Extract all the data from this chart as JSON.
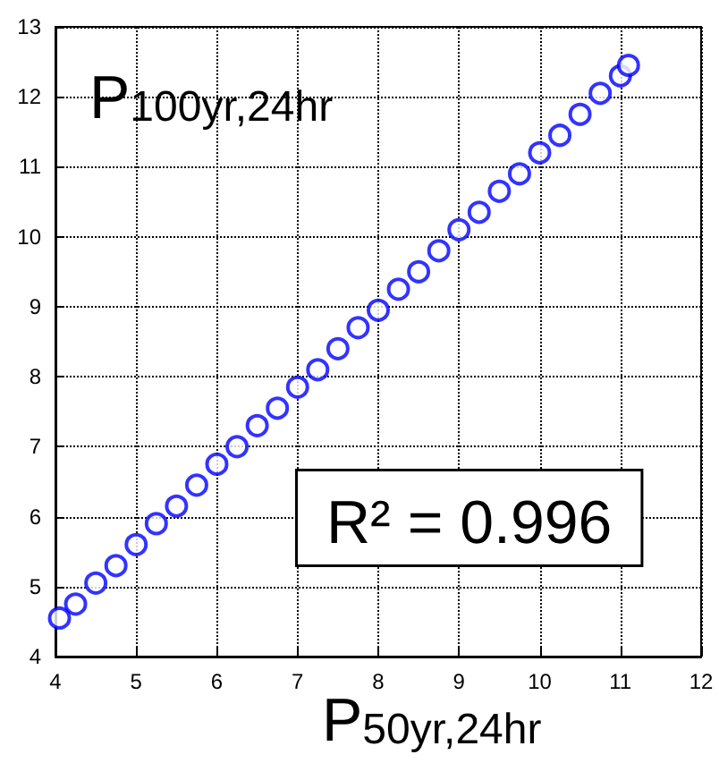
{
  "chart_data": {
    "type": "scatter",
    "xlabel": "P$_{50yr,24hr}$",
    "ylabel": "P$_{100yr,24hr}$",
    "annotations": [
      "R² = 0.996"
    ],
    "x": [
      4.05,
      4.25,
      4.5,
      4.75,
      5,
      5.25,
      5.5,
      5.75,
      6,
      6.25,
      6.5,
      6.75,
      7,
      7.25,
      7.5,
      7.75,
      8,
      8.25,
      8.5,
      8.75,
      9,
      9.25,
      9.5,
      9.75,
      10,
      10.25,
      10.5,
      10.75,
      11,
      11.1
    ],
    "series": [
      {
        "color": "#0000ff",
        "values": [
          4.55,
          4.75,
          5.05,
          5.3,
          5.6,
          5.9,
          6.15,
          6.45,
          6.75,
          7.0,
          7.3,
          7.55,
          7.85,
          8.1,
          8.4,
          8.7,
          8.95,
          9.25,
          9.5,
          9.8,
          10.1,
          10.35,
          10.65,
          10.9,
          11.2,
          11.45,
          11.75,
          12.05,
          12.3,
          12.45
        ]
      }
    ],
    "xlim": [
      4,
      12
    ],
    "xticks": [
      4,
      5,
      6,
      7,
      8,
      9,
      10,
      11,
      12
    ],
    "ylim": [
      4,
      13
    ],
    "yticks": [
      4,
      5,
      6,
      7,
      8,
      9,
      10,
      11,
      12,
      13
    ],
    "grid": true,
    "marker": "circle"
  }
}
